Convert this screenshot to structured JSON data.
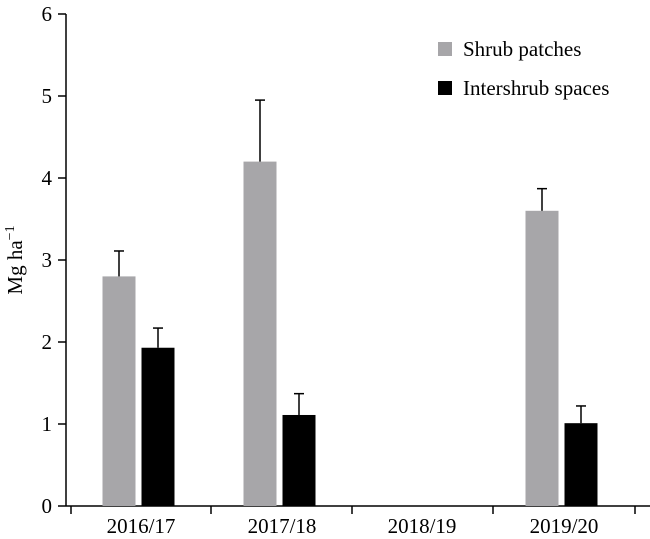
{
  "chart_data": {
    "type": "bar",
    "title": "",
    "xlabel": "",
    "ylabel": "Mg ha",
    "ylabel_superscript": "−1",
    "ylim": [
      0,
      6
    ],
    "yticks": [
      "0",
      "1",
      "2",
      "3",
      "4",
      "5",
      "6"
    ],
    "categories": [
      "2016/17",
      "2017/18",
      "2018/19",
      "2019/20"
    ],
    "series": [
      {
        "name": "Shrub patches",
        "color": "#a7a6a9",
        "values": [
          2.8,
          4.2,
          null,
          3.6
        ],
        "errors": [
          0.31,
          0.75,
          null,
          0.27
        ]
      },
      {
        "name": "Intershrub spaces",
        "color": "#000000",
        "values": [
          1.93,
          1.11,
          null,
          1.01
        ],
        "errors": [
          0.24,
          0.26,
          null,
          0.21
        ]
      }
    ],
    "legend_position": "top-right",
    "grid": false
  }
}
